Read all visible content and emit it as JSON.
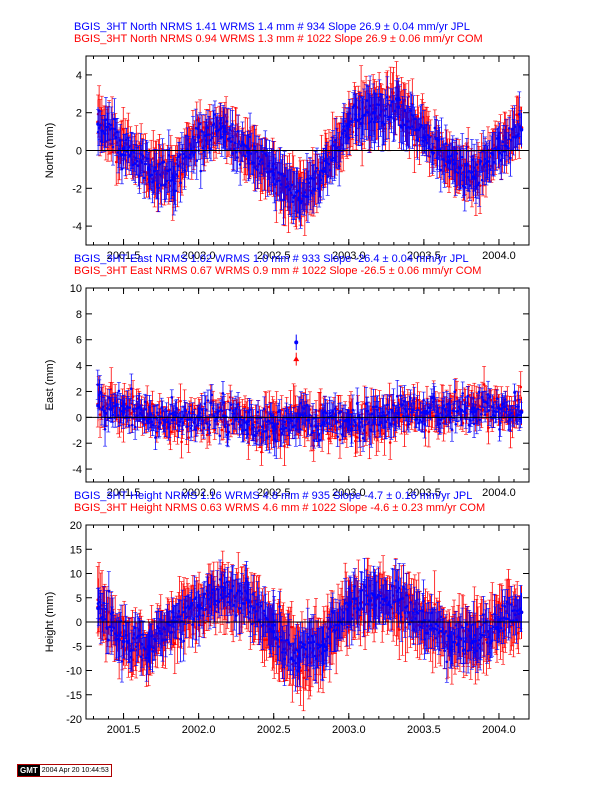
{
  "chart_data": [
    {
      "type": "scatter",
      "component": "north",
      "titles": [
        {
          "text": "BGIS_3HT North NRMS 1.41 WRMS  1.4 mm # 934 Slope   26.9 ±  0.04 mm/yr JPL",
          "color": "#0000ff"
        },
        {
          "text": "BGIS_3HT North NRMS 0.94 WRMS  1.3 mm # 1022 Slope   26.9 ±  0.06 mm/yr COM",
          "color": "#ff0000"
        }
      ],
      "ylabel": "North (mm)",
      "xlabel": "",
      "xlim": [
        2001.25,
        2004.2
      ],
      "ylim": [
        -5,
        5
      ],
      "xticks": [
        "2001.5",
        "2002.0",
        "2002.5",
        "2003.0",
        "2003.5",
        "2004.0"
      ],
      "yticks": [
        "-4",
        "-2",
        "0",
        "2",
        "4"
      ],
      "series": [
        {
          "name": "COM",
          "color": "#ff0000",
          "x": [
            2001.33,
            2001.5,
            2001.67,
            2001.83,
            2002.0,
            2002.17,
            2002.33,
            2002.5,
            2002.67,
            2002.83,
            2003.0,
            2003.17,
            2003.33,
            2003.5,
            2003.67,
            2003.83,
            2004.0,
            2004.15
          ],
          "y": [
            1.5,
            0.2,
            -1.0,
            -1.5,
            0.8,
            1.2,
            0.0,
            -1.2,
            -2.5,
            -1.0,
            1.5,
            2.2,
            2.5,
            0.8,
            -0.5,
            -1.5,
            0.0,
            1.2
          ],
          "err": [
            1.2,
            1.0,
            1.1,
            1.2,
            1.0,
            1.0,
            1.1,
            1.2,
            1.3,
            1.1,
            1.1,
            1.4,
            1.2,
            1.0,
            1.1,
            1.2,
            1.0,
            1.1
          ]
        },
        {
          "name": "JPL",
          "color": "#0000ff",
          "x": [
            2001.33,
            2001.5,
            2001.67,
            2001.83,
            2002.0,
            2002.17,
            2002.33,
            2002.5,
            2002.67,
            2002.83,
            2003.0,
            2003.17,
            2003.33,
            2003.5,
            2003.67,
            2003.83,
            2004.0,
            2004.15
          ],
          "y": [
            1.4,
            0.1,
            -1.0,
            -1.4,
            0.7,
            1.0,
            -0.1,
            -1.3,
            -2.6,
            -1.1,
            1.4,
            2.0,
            2.3,
            0.7,
            -0.6,
            -1.4,
            0.1,
            1.1
          ],
          "err": [
            0.9,
            0.8,
            0.9,
            1.0,
            0.8,
            0.8,
            0.9,
            1.0,
            1.1,
            0.9,
            0.9,
            1.2,
            1.0,
            0.8,
            0.9,
            1.0,
            0.8,
            0.9
          ]
        }
      ]
    },
    {
      "type": "scatter",
      "component": "east",
      "titles": [
        {
          "text": "BGIS_3HT East NRMS 1.02 WRMS  1.0 mm # 933 Slope  -26.4 ±  0.04 mm/yr JPL",
          "color": "#0000ff"
        },
        {
          "text": "BGIS_3HT East NRMS 0.67 WRMS  0.9 mm # 1022 Slope  -26.5 ±  0.06 mm/yr COM",
          "color": "#ff0000"
        }
      ],
      "ylabel": "East (mm)",
      "xlabel": "",
      "xlim": [
        2001.25,
        2004.2
      ],
      "ylim": [
        -5,
        10
      ],
      "xticks": [
        "2001.5",
        "2002.0",
        "2002.5",
        "2003.0",
        "2003.5",
        "2004.0"
      ],
      "yticks": [
        "-4",
        "-2",
        "0",
        "2",
        "4",
        "6",
        "8",
        "10"
      ],
      "series": [
        {
          "name": "COM",
          "color": "#ff0000",
          "x": [
            2001.33,
            2001.5,
            2001.67,
            2001.83,
            2002.0,
            2002.17,
            2002.33,
            2002.5,
            2002.67,
            2002.83,
            2003.0,
            2003.17,
            2003.33,
            2003.5,
            2003.67,
            2003.83,
            2004.0,
            2004.15
          ],
          "y": [
            1.0,
            0.5,
            0.0,
            -0.2,
            0.0,
            0.2,
            -0.3,
            -0.8,
            0.0,
            -0.5,
            -0.3,
            -0.5,
            0.3,
            0.5,
            0.5,
            0.8,
            0.8,
            0.5
          ],
          "err": [
            1.3,
            1.1,
            1.0,
            1.0,
            1.0,
            1.0,
            1.1,
            1.3,
            1.3,
            1.2,
            1.1,
            1.3,
            1.1,
            1.0,
            1.0,
            1.1,
            1.0,
            1.1
          ]
        },
        {
          "name": "JPL",
          "color": "#0000ff",
          "x": [
            2001.33,
            2001.5,
            2001.67,
            2001.83,
            2002.0,
            2002.17,
            2002.33,
            2002.5,
            2002.67,
            2002.83,
            2003.0,
            2003.17,
            2003.33,
            2003.5,
            2003.67,
            2003.83,
            2004.0,
            2004.15
          ],
          "y": [
            0.9,
            0.4,
            -0.1,
            -0.2,
            0.0,
            0.1,
            -0.3,
            -0.7,
            0.1,
            -0.4,
            -0.3,
            -0.4,
            0.3,
            0.4,
            0.5,
            0.7,
            0.7,
            0.4
          ],
          "err": [
            1.0,
            0.9,
            0.8,
            0.8,
            0.8,
            0.8,
            0.9,
            1.0,
            1.0,
            0.9,
            0.9,
            1.0,
            0.9,
            0.8,
            0.8,
            0.9,
            0.8,
            0.9
          ]
        }
      ],
      "outliers": [
        {
          "x": 2002.65,
          "y": 5.8,
          "err": 0.6,
          "color": "#0000ff"
        },
        {
          "x": 2002.65,
          "y": 4.5,
          "err": 0.5,
          "color": "#ff0000"
        }
      ]
    },
    {
      "type": "scatter",
      "component": "height",
      "titles": [
        {
          "text": "BGIS_3HT Height NRMS 1.16 WRMS  4.8 mm # 935 Slope   -4.7 ±  0.16 mm/yr JPL",
          "color": "#0000ff"
        },
        {
          "text": "BGIS_3HT Height NRMS 0.63 WRMS  4.6 mm # 1022 Slope   -4.6 ±  0.23 mm/yr COM",
          "color": "#ff0000"
        }
      ],
      "ylabel": "Height (mm)",
      "xlabel": "",
      "xlim": [
        2001.25,
        2004.2
      ],
      "ylim": [
        -20,
        20
      ],
      "xticks": [
        "2001.5",
        "2002.0",
        "2002.5",
        "2003.0",
        "2003.5",
        "2004.0"
      ],
      "yticks": [
        "-20",
        "-15",
        "-10",
        "-5",
        "0",
        "5",
        "10",
        "15",
        "20"
      ],
      "series": [
        {
          "name": "COM",
          "color": "#ff0000",
          "x": [
            2001.33,
            2001.5,
            2001.67,
            2001.83,
            2002.0,
            2002.17,
            2002.33,
            2002.5,
            2002.67,
            2002.83,
            2003.0,
            2003.17,
            2003.33,
            2003.5,
            2003.67,
            2003.83,
            2004.0,
            2004.15
          ],
          "y": [
            3.0,
            -4.0,
            -5.0,
            0.0,
            3.0,
            6.0,
            4.0,
            -2.0,
            -7.0,
            -5.0,
            3.0,
            5.0,
            4.0,
            0.0,
            -3.0,
            -4.0,
            0.0,
            2.0
          ],
          "err": [
            6.0,
            5.0,
            5.0,
            5.0,
            5.0,
            5.0,
            5.5,
            6.0,
            6.0,
            5.5,
            5.5,
            6.0,
            5.5,
            5.0,
            5.0,
            5.5,
            5.0,
            5.5
          ]
        },
        {
          "name": "JPL",
          "color": "#0000ff",
          "x": [
            2001.33,
            2001.5,
            2001.67,
            2001.83,
            2002.0,
            2002.17,
            2002.33,
            2002.5,
            2002.67,
            2002.83,
            2003.0,
            2003.17,
            2003.33,
            2003.5,
            2003.67,
            2003.83,
            2004.0,
            2004.15
          ],
          "y": [
            2.8,
            -4.0,
            -5.0,
            0.2,
            3.2,
            6.5,
            4.5,
            -2.0,
            -7.5,
            -5.0,
            3.5,
            5.5,
            4.5,
            0.2,
            -3.0,
            -4.0,
            0.2,
            2.0
          ],
          "err": [
            4.0,
            3.5,
            3.5,
            3.5,
            3.5,
            3.5,
            4.0,
            4.0,
            4.5,
            4.0,
            4.0,
            4.5,
            4.0,
            3.5,
            3.5,
            4.0,
            3.5,
            4.0
          ]
        }
      ]
    }
  ],
  "footer": {
    "logo_text": "GMT",
    "timestamp": "2004 Apr 20 10:44:53"
  }
}
